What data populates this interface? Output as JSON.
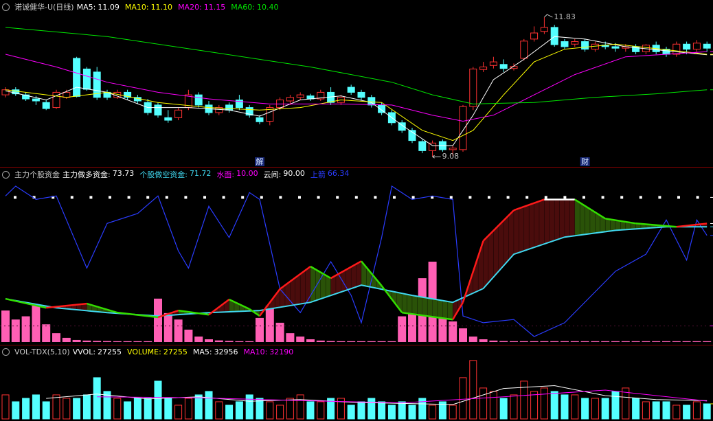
{
  "chart_data": [
    {
      "type": "candlestick",
      "title": "诺诚健华-U(日线)",
      "ylim": [
        8.88,
        12.17
      ],
      "up_color": "#ff3232",
      "down_color": "#54ffff",
      "ohlc": [
        [
          10.3,
          10.45,
          10.25,
          10.4
        ],
        [
          10.4,
          10.45,
          10.28,
          10.32
        ],
        [
          10.3,
          10.35,
          10.18,
          10.22
        ],
        [
          10.22,
          10.28,
          10.1,
          10.18
        ],
        [
          10.15,
          10.2,
          10.0,
          10.03
        ],
        [
          10.05,
          10.4,
          10.02,
          10.35
        ],
        [
          10.25,
          10.4,
          10.22,
          10.35
        ],
        [
          11.02,
          11.05,
          10.25,
          10.27
        ],
        [
          10.81,
          10.85,
          10.38,
          10.41
        ],
        [
          10.75,
          10.85,
          10.2,
          10.25
        ],
        [
          10.35,
          10.4,
          10.2,
          10.25
        ],
        [
          10.25,
          10.4,
          10.22,
          10.35
        ],
        [
          10.35,
          10.4,
          10.2,
          10.25
        ],
        [
          10.25,
          10.3,
          10.12,
          10.18
        ],
        [
          10.15,
          10.22,
          9.9,
          9.95
        ],
        [
          10.1,
          10.15,
          9.85,
          9.9
        ],
        [
          9.85,
          10.0,
          9.75,
          9.8
        ],
        [
          9.85,
          10.05,
          9.8,
          10.0
        ],
        [
          10.05,
          10.4,
          10.0,
          10.3
        ],
        [
          10.3,
          10.35,
          10.05,
          10.1
        ],
        [
          10.1,
          10.18,
          9.9,
          9.95
        ],
        [
          9.95,
          10.1,
          9.9,
          10.05
        ],
        [
          10.1,
          10.15,
          9.95,
          10.0
        ],
        [
          10.2,
          10.3,
          10.0,
          10.05
        ],
        [
          10.05,
          10.1,
          9.85,
          9.9
        ],
        [
          9.85,
          9.9,
          9.72,
          9.77
        ],
        [
          9.78,
          10.1,
          9.7,
          10.05
        ],
        [
          10.05,
          10.25,
          10.0,
          10.2
        ],
        [
          10.18,
          10.3,
          10.1,
          10.25
        ],
        [
          10.25,
          10.35,
          10.2,
          10.3
        ],
        [
          10.28,
          10.32,
          10.18,
          10.22
        ],
        [
          10.22,
          10.4,
          10.18,
          10.35
        ],
        [
          10.35,
          10.45,
          10.1,
          10.15
        ],
        [
          10.15,
          10.3,
          10.1,
          10.25
        ],
        [
          10.45,
          10.5,
          10.3,
          10.35
        ],
        [
          10.35,
          10.4,
          10.2,
          10.25
        ],
        [
          10.25,
          10.3,
          10.05,
          10.1
        ],
        [
          10.1,
          10.15,
          9.9,
          9.95
        ],
        [
          9.95,
          10.0,
          9.7,
          9.75
        ],
        [
          9.75,
          9.8,
          9.55,
          9.6
        ],
        [
          9.6,
          9.65,
          9.35,
          9.4
        ],
        [
          9.38,
          9.42,
          9.15,
          9.2
        ],
        [
          9.2,
          9.4,
          9.08,
          9.35
        ],
        [
          9.38,
          9.42,
          9.18,
          9.22
        ],
        [
          9.22,
          9.3,
          9.1,
          9.25
        ],
        [
          9.22,
          10.1,
          9.18,
          10.07
        ],
        [
          10.07,
          10.85,
          10.0,
          10.81
        ],
        [
          10.8,
          10.95,
          10.75,
          10.85
        ],
        [
          10.88,
          11.05,
          10.82,
          10.95
        ],
        [
          10.9,
          11.0,
          10.75,
          10.82
        ],
        [
          10.82,
          10.92,
          10.78,
          10.86
        ],
        [
          11.02,
          11.4,
          10.98,
          11.36
        ],
        [
          11.4,
          11.65,
          11.35,
          11.52
        ],
        [
          11.55,
          11.83,
          11.5,
          11.63
        ],
        [
          11.63,
          11.68,
          11.25,
          11.29
        ],
        [
          11.35,
          11.4,
          11.2,
          11.25
        ],
        [
          11.3,
          11.4,
          11.25,
          11.35
        ],
        [
          11.35,
          11.4,
          11.15,
          11.2
        ],
        [
          11.2,
          11.35,
          11.15,
          11.3
        ],
        [
          11.28,
          11.35,
          11.2,
          11.25
        ],
        [
          11.25,
          11.32,
          11.15,
          11.22
        ],
        [
          11.22,
          11.3,
          11.15,
          11.25
        ],
        [
          11.25,
          11.3,
          11.1,
          11.15
        ],
        [
          11.15,
          11.3,
          11.1,
          11.28
        ],
        [
          11.28,
          11.35,
          11.1,
          11.15
        ],
        [
          11.2,
          11.25,
          11.05,
          11.1
        ],
        [
          11.1,
          11.35,
          11.05,
          11.3
        ],
        [
          11.3,
          11.35,
          11.1,
          11.2
        ],
        [
          11.2,
          11.38,
          11.15,
          11.32
        ],
        [
          11.3,
          11.35,
          11.15,
          11.22
        ]
      ],
      "series": [
        {
          "name": "MA5:",
          "value": 11.09,
          "label": "11.09",
          "color": "#ffffff",
          "x": [
            0,
            4,
            7,
            10,
            14,
            18,
            22,
            25,
            29,
            33,
            36,
            39,
            42,
            44,
            46,
            48,
            51,
            54,
            57,
            61,
            69
          ],
          "values": [
            10.38,
            10.2,
            10.45,
            10.35,
            10.05,
            10.05,
            10.0,
            9.88,
            10.2,
            10.28,
            10.15,
            9.7,
            9.3,
            9.3,
            9.9,
            10.6,
            11.0,
            11.45,
            11.4,
            11.25,
            11.09
          ]
        },
        {
          "name": "MA10:",
          "value": 11.1,
          "label": "11.10",
          "color": "#ffff00",
          "x": [
            0,
            6,
            10,
            15,
            20,
            25,
            29,
            33,
            37,
            41,
            44,
            46,
            49,
            52,
            55,
            60,
            69
          ],
          "values": [
            10.4,
            10.25,
            10.35,
            10.15,
            10.05,
            10.0,
            10.05,
            10.2,
            10.15,
            9.6,
            9.4,
            9.6,
            10.3,
            10.95,
            11.2,
            11.3,
            11.1
          ]
        },
        {
          "name": "MA20:",
          "value": 11.15,
          "label": "11.15",
          "color": "#ff00ff",
          "x": [
            0,
            5,
            10,
            15,
            20,
            26,
            33,
            38,
            42,
            45,
            48,
            52,
            56,
            61,
            69
          ],
          "values": [
            11.1,
            10.85,
            10.55,
            10.35,
            10.22,
            10.12,
            10.12,
            10.1,
            9.9,
            9.78,
            9.9,
            10.3,
            10.7,
            11.05,
            11.15
          ]
        },
        {
          "name": "MA60:",
          "value": 10.4,
          "label": "10.40",
          "color": "#00e600",
          "x": [
            0,
            10,
            20,
            30,
            38,
            42,
            46,
            52,
            58,
            64,
            69
          ],
          "values": [
            11.63,
            11.45,
            11.15,
            10.85,
            10.55,
            10.3,
            10.12,
            10.15,
            10.25,
            10.32,
            10.4
          ]
        }
      ],
      "annotations": [
        {
          "index": 53,
          "value": 11.83
        },
        {
          "index": 42,
          "value": 9.08
        }
      ],
      "markers": [
        {
          "index": 25,
          "label": "解"
        },
        {
          "index": 57,
          "label": "财"
        }
      ]
    },
    {
      "type": "indicator",
      "title": "主力个股资金",
      "ylim": [
        0,
        100
      ],
      "rise_color": "#ff1a1a",
      "fall_color": "#33dd00",
      "fill_rise": "#4a0c0c",
      "fill_fall": "#2a5208",
      "bars": {
        "color": "#ff5fb4",
        "values": [
          19.6,
          14,
          16,
          22.6,
          11,
          5.5,
          2.6,
          1.3,
          0.9,
          0.7,
          0.6,
          0.5,
          0.5,
          0.5,
          0.5,
          27,
          18,
          14,
          7.7,
          3.4,
          1.7,
          1,
          0.7,
          0.5,
          0.5,
          15,
          22.6,
          12,
          5.5,
          3.4,
          1.7,
          0.9,
          0.6,
          0.5,
          0.5,
          0.5,
          0.5,
          0.5,
          0.5,
          16,
          29,
          39.7,
          50,
          24.7,
          12.8,
          8.5,
          3.4,
          1.7,
          0.9,
          0.6,
          0.5,
          0.5,
          0.5,
          0.5,
          0.5,
          0.5,
          0.5,
          0.5,
          0.5,
          0.5,
          0.5,
          0.5,
          0.5,
          0.5,
          0.5,
          0.5,
          0.5,
          0.5,
          0.5,
          0.5
        ]
      },
      "series": [
        {
          "name": "主力做多资金:",
          "value": 73.73,
          "label": "73.73",
          "color": "#ffffff",
          "x": [
            0,
            4,
            8,
            11,
            15,
            17,
            20,
            22,
            24,
            25,
            27,
            30,
            32,
            35,
            37,
            39,
            44,
            45,
            47,
            50,
            53,
            56,
            59,
            62,
            66,
            69
          ],
          "values": [
            26.9,
            21.3,
            23.9,
            18.3,
            15.4,
            19.6,
            17,
            26.5,
            20.5,
            16.2,
            33,
            47,
            39.7,
            50.3,
            35,
            18.3,
            14,
            24.7,
            63,
            82,
            88.7,
            88.7,
            76.8,
            73.8,
            71.7,
            73.73
          ]
        },
        {
          "name": "个股做空资金:",
          "value": 71.72,
          "label": "71.72",
          "color": "#40d8f0",
          "x": [
            0,
            5,
            10,
            15,
            20,
            25,
            30,
            35,
            40,
            44,
            47,
            50,
            55,
            60,
            65,
            69
          ],
          "values": [
            26.9,
            21.3,
            18.3,
            16.2,
            18.3,
            19.6,
            24.7,
            35.4,
            29,
            24.7,
            33.3,
            54.6,
            65.3,
            69.5,
            71.7,
            71.72
          ]
        },
        {
          "name": "上箭",
          "value": 66.34,
          "label": "66.34",
          "color": "#2a3cff",
          "x": [
            0,
            1,
            3,
            5,
            8,
            10,
            13,
            15,
            17,
            18,
            20,
            22,
            24,
            25,
            27,
            29,
            32,
            34,
            35,
            37,
            38,
            40,
            42,
            44,
            45,
            47,
            50,
            52,
            55,
            60,
            63,
            65,
            67,
            68,
            69
          ],
          "values": [
            90.9,
            97,
            88.7,
            90.9,
            46,
            73.8,
            80,
            90.9,
            56.7,
            46,
            84.5,
            65,
            93,
            88.7,
            33,
            18.3,
            50,
            29,
            12,
            65,
            97,
            88.7,
            90.9,
            88.7,
            16.2,
            12,
            14,
            3.4,
            12,
            44,
            54.6,
            76,
            51,
            76,
            66.34
          ]
        }
      ],
      "levels": [
        {
          "name": "水面:",
          "value": 10,
          "label": "10.00",
          "color": "#ff00ff"
        },
        {
          "name": "云间:",
          "value": 90,
          "label": "90.00",
          "color": "#ffffff"
        }
      ]
    },
    {
      "type": "volume",
      "title": "VOL-TDX(5,10)",
      "ylim": [
        0,
        130000
      ],
      "values": [
        43400,
        31000,
        37200,
        43400,
        31000,
        43400,
        37200,
        37200,
        43400,
        74400,
        49600,
        37200,
        31000,
        37200,
        37200,
        68200,
        37200,
        24800,
        37200,
        43400,
        49600,
        31000,
        24800,
        31000,
        43400,
        37200,
        31000,
        24800,
        37200,
        43400,
        31000,
        31000,
        37200,
        37200,
        24800,
        31000,
        37200,
        31000,
        24800,
        31000,
        24800,
        37200,
        24800,
        31000,
        24800,
        74400,
        105400,
        55800,
        49600,
        37200,
        43400,
        68200,
        49600,
        55800,
        49600,
        43400,
        43400,
        37200,
        37200,
        37200,
        49600,
        55800,
        37200,
        31000,
        31000,
        31000,
        24800,
        24800,
        31000,
        27255
      ],
      "legend": [
        {
          "name": "VVOL:",
          "value": 27255,
          "color": "#ffffff"
        },
        {
          "name": "VOLUME:",
          "value": 27255,
          "color": "#ffff00"
        }
      ],
      "series": [
        {
          "name": "MA5:",
          "value": 32956,
          "color": "#ffffff",
          "x": [
            4,
            9,
            14,
            19,
            24,
            29,
            34,
            39,
            44,
            49,
            54,
            59,
            64,
            69
          ],
          "values": [
            37000,
            45000,
            36000,
            40000,
            32000,
            35000,
            30000,
            28000,
            26000,
            55000,
            60000,
            42000,
            35000,
            32956
          ]
        },
        {
          "name": "MA10:",
          "value": 32190,
          "color": "#ff00ff",
          "x": [
            9,
            19,
            29,
            39,
            49,
            59,
            69
          ],
          "values": [
            40000,
            38000,
            33000,
            29000,
            40000,
            52000,
            32190
          ]
        }
      ]
    }
  ]
}
